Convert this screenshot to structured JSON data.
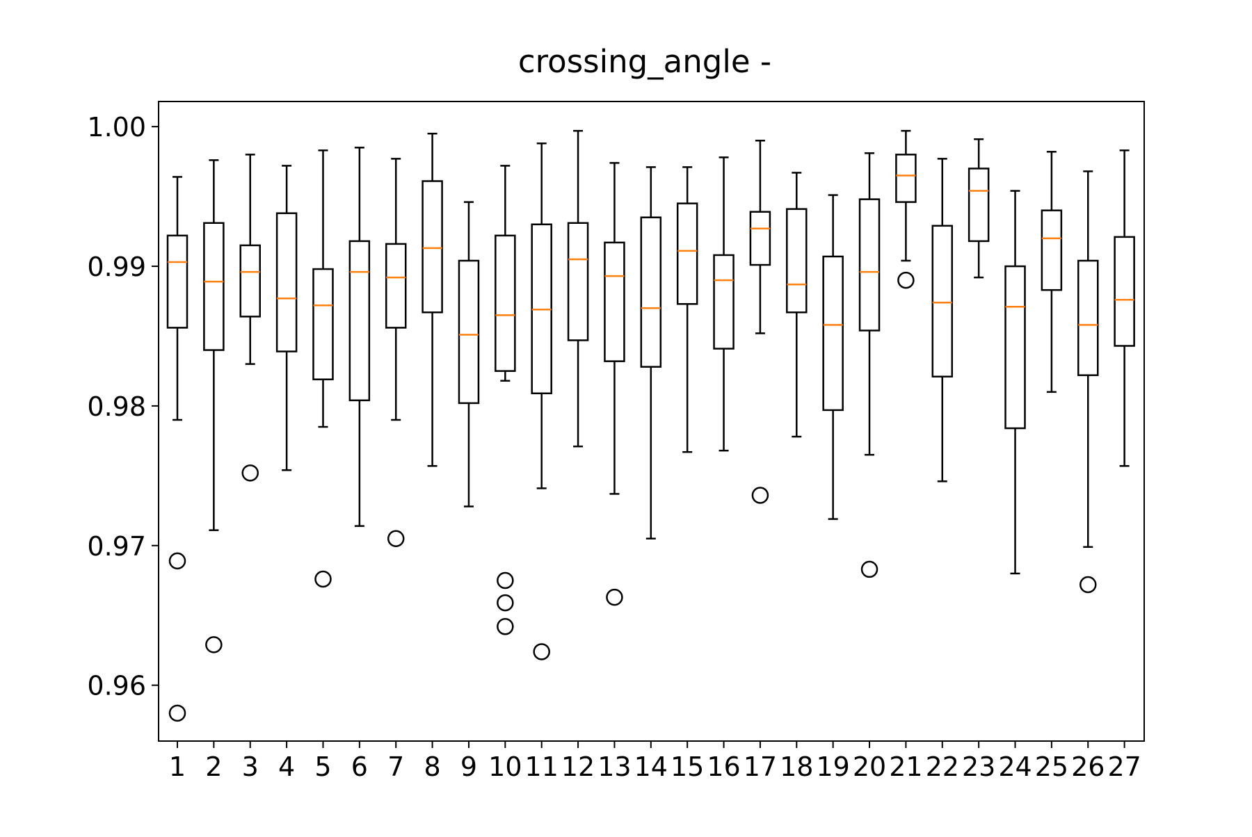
{
  "chart_data": {
    "type": "boxplot",
    "title": "crossing_angle -",
    "xlabel": "",
    "ylabel": "",
    "ylim": [
      0.956,
      1.0018
    ],
    "yticks": [
      "0.96",
      "0.97",
      "0.98",
      "0.99",
      "1.00"
    ],
    "ytick_values": [
      0.96,
      0.97,
      0.98,
      0.99,
      1.0
    ],
    "categories": [
      "1",
      "2",
      "3",
      "4",
      "5",
      "6",
      "7",
      "8",
      "9",
      "10",
      "11",
      "12",
      "13",
      "14",
      "15",
      "16",
      "17",
      "18",
      "19",
      "20",
      "21",
      "22",
      "23",
      "24",
      "25",
      "26",
      "27"
    ],
    "boxes": [
      {
        "whislo": 0.979,
        "q1": 0.9856,
        "med": 0.9903,
        "q3": 0.9922,
        "whishi": 0.9964,
        "fliers": [
          0.9689,
          0.958
        ]
      },
      {
        "whislo": 0.9711,
        "q1": 0.984,
        "med": 0.9889,
        "q3": 0.9931,
        "whishi": 0.9976,
        "fliers": [
          0.9629
        ]
      },
      {
        "whislo": 0.983,
        "q1": 0.9864,
        "med": 0.9896,
        "q3": 0.9915,
        "whishi": 0.998,
        "fliers": [
          0.9752
        ]
      },
      {
        "whislo": 0.9754,
        "q1": 0.9839,
        "med": 0.9877,
        "q3": 0.9938,
        "whishi": 0.9972,
        "fliers": []
      },
      {
        "whislo": 0.9785,
        "q1": 0.9819,
        "med": 0.9872,
        "q3": 0.9898,
        "whishi": 0.9983,
        "fliers": [
          0.9676
        ]
      },
      {
        "whislo": 0.9714,
        "q1": 0.9804,
        "med": 0.9896,
        "q3": 0.9918,
        "whishi": 0.9985,
        "fliers": []
      },
      {
        "whislo": 0.979,
        "q1": 0.9856,
        "med": 0.9892,
        "q3": 0.9916,
        "whishi": 0.9977,
        "fliers": [
          0.9705
        ]
      },
      {
        "whislo": 0.9757,
        "q1": 0.9867,
        "med": 0.9913,
        "q3": 0.9961,
        "whishi": 0.9995,
        "fliers": []
      },
      {
        "whislo": 0.9728,
        "q1": 0.9802,
        "med": 0.9851,
        "q3": 0.9904,
        "whishi": 0.9946,
        "fliers": []
      },
      {
        "whislo": 0.9818,
        "q1": 0.9825,
        "med": 0.9865,
        "q3": 0.9922,
        "whishi": 0.9972,
        "fliers": [
          0.9675,
          0.9659,
          0.9642
        ]
      },
      {
        "whislo": 0.9741,
        "q1": 0.9809,
        "med": 0.9869,
        "q3": 0.993,
        "whishi": 0.9988,
        "fliers": [
          0.9624
        ]
      },
      {
        "whislo": 0.9771,
        "q1": 0.9847,
        "med": 0.9905,
        "q3": 0.9931,
        "whishi": 0.9997,
        "fliers": []
      },
      {
        "whislo": 0.9737,
        "q1": 0.9832,
        "med": 0.9893,
        "q3": 0.9917,
        "whishi": 0.9974,
        "fliers": [
          0.9663
        ]
      },
      {
        "whislo": 0.9705,
        "q1": 0.9828,
        "med": 0.987,
        "q3": 0.9935,
        "whishi": 0.9971,
        "fliers": []
      },
      {
        "whislo": 0.9767,
        "q1": 0.9873,
        "med": 0.9911,
        "q3": 0.9945,
        "whishi": 0.9971,
        "fliers": []
      },
      {
        "whislo": 0.9768,
        "q1": 0.9841,
        "med": 0.989,
        "q3": 0.9908,
        "whishi": 0.9978,
        "fliers": []
      },
      {
        "whislo": 0.9852,
        "q1": 0.9901,
        "med": 0.9927,
        "q3": 0.9939,
        "whishi": 0.999,
        "fliers": [
          0.9736
        ]
      },
      {
        "whislo": 0.9778,
        "q1": 0.9867,
        "med": 0.9887,
        "q3": 0.9941,
        "whishi": 0.9967,
        "fliers": []
      },
      {
        "whislo": 0.9719,
        "q1": 0.9797,
        "med": 0.9858,
        "q3": 0.9907,
        "whishi": 0.9951,
        "fliers": []
      },
      {
        "whislo": 0.9765,
        "q1": 0.9854,
        "med": 0.9896,
        "q3": 0.9948,
        "whishi": 0.9981,
        "fliers": [
          0.9683
        ]
      },
      {
        "whislo": 0.9904,
        "q1": 0.9946,
        "med": 0.9965,
        "q3": 0.998,
        "whishi": 0.9997,
        "fliers": [
          0.989
        ]
      },
      {
        "whislo": 0.9746,
        "q1": 0.9821,
        "med": 0.9874,
        "q3": 0.9929,
        "whishi": 0.9977,
        "fliers": []
      },
      {
        "whislo": 0.9892,
        "q1": 0.9918,
        "med": 0.9954,
        "q3": 0.997,
        "whishi": 0.9991,
        "fliers": []
      },
      {
        "whislo": 0.968,
        "q1": 0.9784,
        "med": 0.9871,
        "q3": 0.99,
        "whishi": 0.9954,
        "fliers": []
      },
      {
        "whislo": 0.981,
        "q1": 0.9883,
        "med": 0.992,
        "q3": 0.994,
        "whishi": 0.9982,
        "fliers": []
      },
      {
        "whislo": 0.9699,
        "q1": 0.9822,
        "med": 0.9858,
        "q3": 0.9904,
        "whishi": 0.9968,
        "fliers": [
          0.9672
        ]
      },
      {
        "whislo": 0.9757,
        "q1": 0.9843,
        "med": 0.9876,
        "q3": 0.9921,
        "whishi": 0.9983,
        "fliers": []
      }
    ],
    "box_color": "#000000",
    "median_color": "#ff7f0e",
    "grid": false,
    "legend": "none"
  }
}
